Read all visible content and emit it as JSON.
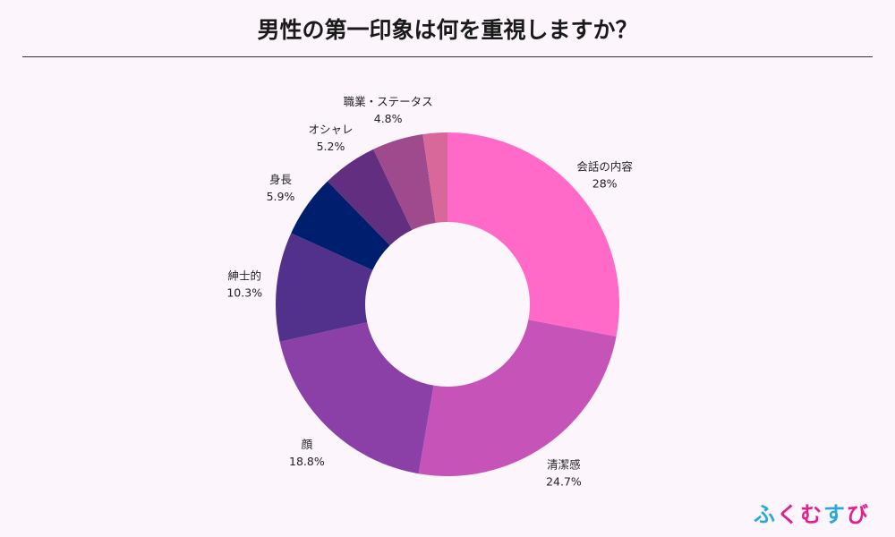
{
  "chart_data": {
    "type": "pie",
    "title": "男性の第一印象は何を重視しますか？",
    "donut": true,
    "slices": [
      {
        "label": "会話の内容",
        "value_label": "28%",
        "value": 28.0,
        "color": "#ff69c8"
      },
      {
        "label": "清潔感",
        "value_label": "24.7%",
        "value": 24.7,
        "color": "#c653b8"
      },
      {
        "label": "顔",
        "value_label": "18.8%",
        "value": 18.8,
        "color": "#8a40a6"
      },
      {
        "label": "紳士的",
        "value_label": "10.3%",
        "value": 10.3,
        "color": "#52318c"
      },
      {
        "label": "身長",
        "value_label": "5.9%",
        "value": 5.9,
        "color": "#001e6e"
      },
      {
        "label": "オシャレ",
        "value_label": "5.2%",
        "value": 5.2,
        "color": "#612e80"
      },
      {
        "label": "職業・ステータス",
        "value_label": "4.8%",
        "value": 4.8,
        "color": "#9e4a8c"
      },
      {
        "label": "",
        "value_label": "",
        "value": 2.3,
        "color": "#d8689a"
      }
    ]
  },
  "brand": {
    "chars": [
      "ふ",
      "く",
      "む",
      "す",
      "び"
    ],
    "colors": [
      "#2aa8d8",
      "#e0208c",
      "#e0208c",
      "#2aa8d8",
      "#e0208c"
    ]
  }
}
